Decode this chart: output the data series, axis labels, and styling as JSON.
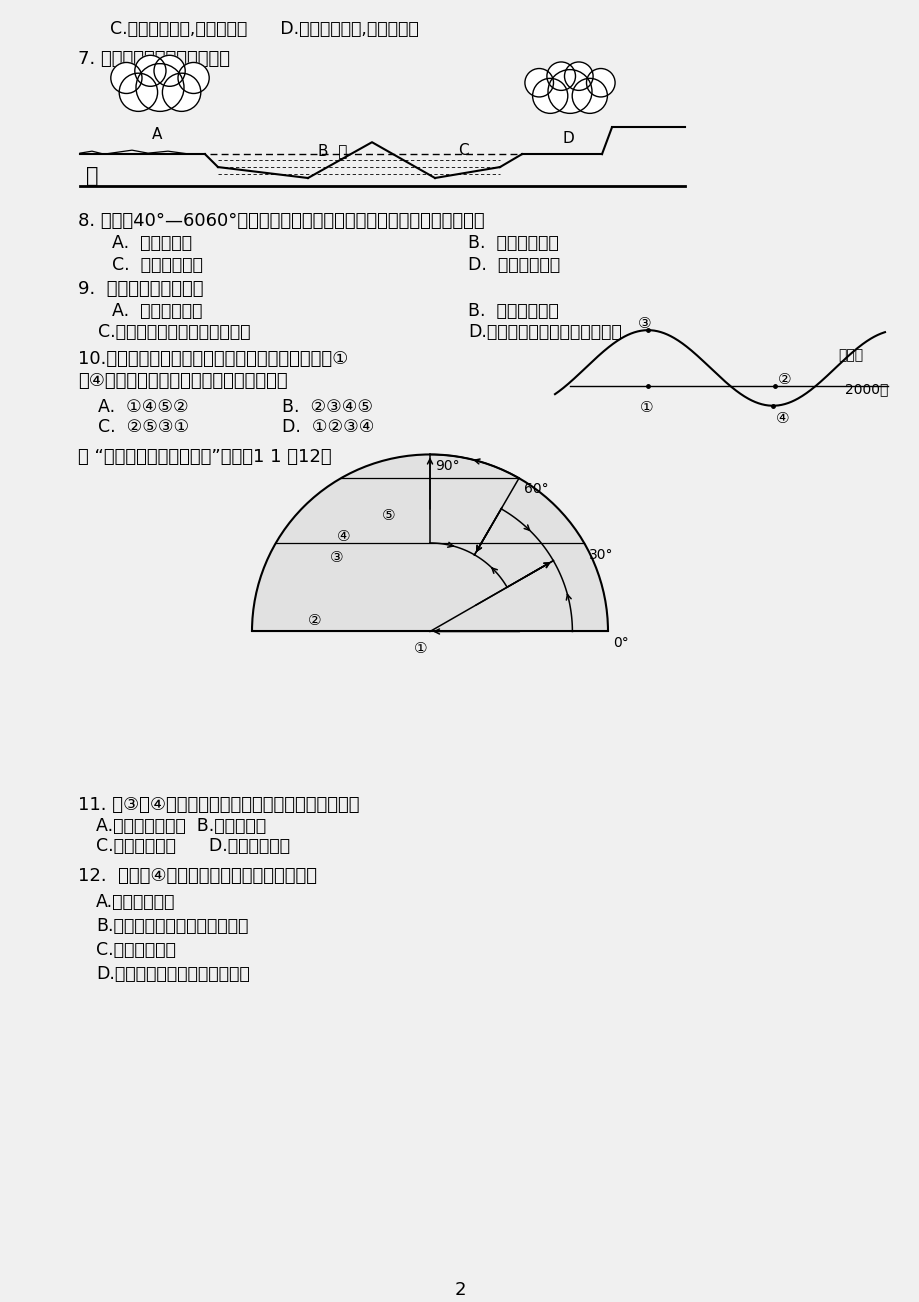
{
  "background_color": "#f0f0f0",
  "page_width": 9.2,
  "page_height": 13.02,
  "dpi": 100,
  "content": {
    "line_c_d": "C.空气中水汽少,地表降温慢      D.大气逆辐射弱,地表降温快",
    "q7_title": "7. 图中四地昼夜温差最小的是",
    "q8_title": "8. 南北纬40°—6060°之间大陆西岸的地区，全年受中纬西风带控制，形成",
    "q8_a": "A.  地中海气候",
    "q8_b": "B.  热带雨林气候",
    "q8_c": "C.  温带海洋气候",
    "q8_d": "D.  热带沙漠气候",
    "q9_title": "9.  地中海气候的特点是",
    "q9_a": "A.  全年高温多雨",
    "q9_b": "B.  全年干燥少雨",
    "q9_c": "C.夏季炎热少雨，冬季温和多雨",
    "q9_d": "D.夏季高温多雨，冬季寒冷干燥",
    "q10_title": "10.右图为热力作用形成的等压面分布示意图，图中①",
    "q10_title2": "至④点的气压，由高到低排列顺序正确的是",
    "q10_a": "A.  ①④⑤②",
    "q10_b": "B.  ②③④⑤",
    "q10_c": "C.  ②⑤③①",
    "q10_d": "D.  ①②③④",
    "q11_intro": "读 “北半球大气环流示意图”，完成1 1 ～12题",
    "q11_title": "11. 受③、④气压带、风带交替控制形成的气候类型是",
    "q11_a": "A.亚热带季风气候  B.地中海气候",
    "q11_c": "C.热带草原气候      D.热带沙漠气候",
    "q12_title": "12.  常年受④风带控制形成气候的基本特征是",
    "q12_a": "A.全年高温多雨",
    "q12_b": "B.夏季寒冷干燥，冬季温和多雨",
    "q12_c": "C.全年温和多雨",
    "q12_d": "D.冬季寒冷干燥，夏季温和多雨",
    "page_num": "2"
  }
}
